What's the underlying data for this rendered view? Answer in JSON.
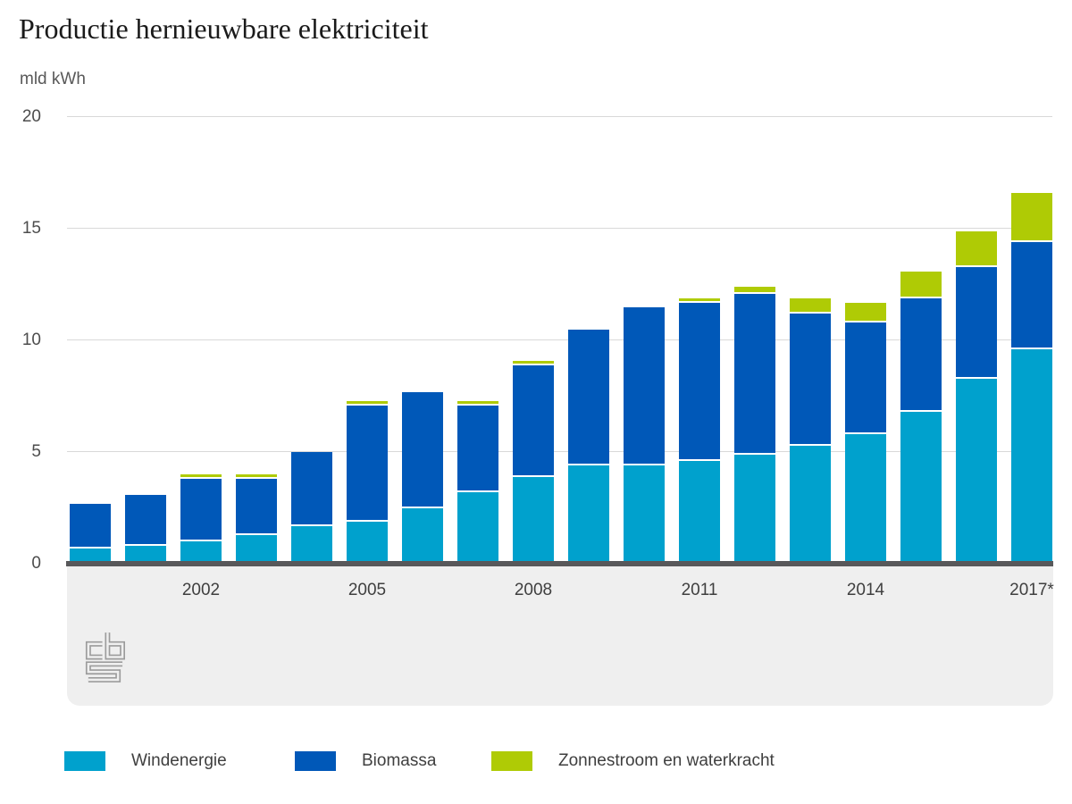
{
  "page": {
    "title": "Productie hernieuwbare elektriciteit",
    "unit_label": "mld kWh"
  },
  "chart_data": {
    "type": "bar",
    "stacked": true,
    "title": "Productie hernieuwbare elektriciteit",
    "ylabel": "mld kWh",
    "ylim": [
      0,
      20
    ],
    "yticks": [
      0,
      5,
      10,
      15,
      20
    ],
    "grid": true,
    "legend_position": "bottom",
    "categories": [
      "2000",
      "2001",
      "2002",
      "2003",
      "2004",
      "2005",
      "2006",
      "2007",
      "2008",
      "2009",
      "2010",
      "2011",
      "2012",
      "2013",
      "2014",
      "2015",
      "2016",
      "2017*"
    ],
    "x_tick_labels_shown": [
      "2002",
      "2005",
      "2008",
      "2011",
      "2014",
      "2017*"
    ],
    "series": [
      {
        "name": "Windenergie",
        "color": "#00a1cd",
        "values": [
          0.7,
          0.8,
          1.0,
          1.3,
          1.7,
          1.9,
          2.5,
          3.2,
          3.9,
          4.4,
          4.4,
          4.6,
          4.9,
          5.3,
          5.8,
          6.8,
          8.3,
          9.6
        ]
      },
      {
        "name": "Biomassa",
        "color": "#0058b8",
        "values": [
          2.0,
          2.3,
          2.8,
          2.5,
          3.3,
          5.2,
          5.2,
          3.9,
          5.0,
          6.1,
          7.1,
          7.1,
          7.2,
          5.9,
          5.0,
          5.1,
          5.0,
          4.8
        ]
      },
      {
        "name": "Zonnestroom en waterkracht",
        "color": "#afcb05",
        "values": [
          0,
          0,
          0.2,
          0.2,
          0,
          0.2,
          0,
          0.2,
          0.2,
          0,
          0,
          0.2,
          0.3,
          0.7,
          0.9,
          1.2,
          1.6,
          2.2
        ]
      }
    ]
  },
  "colors": {
    "axis_line": "#58585a",
    "gridline": "#d9d9d9",
    "footer_band": "#efefef",
    "tick_label": "#4d4d4d",
    "year_label": "#3f3f3f",
    "title": "#1a1a1a",
    "unit_label": "#595959",
    "logo": "#9c9c9c",
    "segment_separator": "#ffffff"
  },
  "logo": {
    "name": "cbs-logo"
  }
}
